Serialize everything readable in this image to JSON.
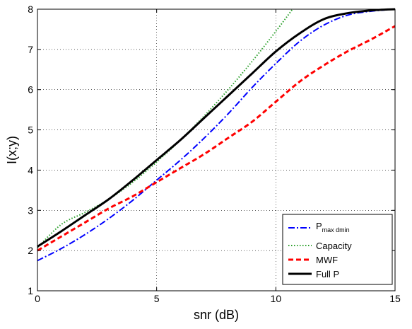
{
  "chart_data": {
    "type": "line",
    "title": "",
    "xlabel": "snr (dB)",
    "ylabel": "I(x;y)",
    "xlim": [
      0,
      15
    ],
    "ylim": [
      1,
      8
    ],
    "xticks": [
      0,
      5,
      10,
      15
    ],
    "yticks": [
      1,
      2,
      3,
      4,
      5,
      6,
      7,
      8
    ],
    "grid": true,
    "legend_position": "bottom-right",
    "series": [
      {
        "name": "P",
        "name_subscript": "max dmin",
        "color": "#0000ff",
        "style": "dash-dot",
        "x": [
          0,
          1,
          2,
          3,
          4,
          5,
          6,
          7,
          8,
          9,
          10,
          11,
          12,
          13,
          14,
          15
        ],
        "y": [
          1.75,
          2.05,
          2.4,
          2.8,
          3.25,
          3.75,
          4.25,
          4.8,
          5.4,
          6.05,
          6.65,
          7.2,
          7.6,
          7.85,
          7.95,
          8.0
        ]
      },
      {
        "name": "Capacity",
        "color": "#2ca02c",
        "style": "dotted",
        "x": [
          0,
          1,
          2,
          3,
          4,
          5,
          6,
          7,
          8,
          9,
          10,
          10.7
        ],
        "y": [
          2.07,
          2.65,
          2.95,
          3.28,
          3.7,
          4.2,
          4.75,
          5.35,
          6.0,
          6.7,
          7.45,
          8.0
        ]
      },
      {
        "name": "MWF",
        "color": "#ff0000",
        "style": "dashed",
        "x": [
          0,
          1,
          2,
          3,
          4,
          5,
          6,
          7,
          8,
          9,
          10,
          11,
          12,
          13,
          14,
          15
        ],
        "y": [
          2.0,
          2.35,
          2.7,
          3.05,
          3.35,
          3.7,
          4.05,
          4.4,
          4.8,
          5.2,
          5.7,
          6.2,
          6.6,
          6.95,
          7.25,
          7.58
        ]
      },
      {
        "name": "Full P",
        "color": "#000000",
        "style": "solid",
        "x": [
          0,
          1,
          2,
          3,
          4,
          5,
          6,
          7,
          8,
          9,
          10,
          11,
          12,
          13,
          14,
          15
        ],
        "y": [
          2.1,
          2.48,
          2.88,
          3.28,
          3.75,
          4.25,
          4.75,
          5.3,
          5.85,
          6.4,
          6.95,
          7.4,
          7.75,
          7.9,
          7.97,
          8.0
        ]
      }
    ]
  }
}
